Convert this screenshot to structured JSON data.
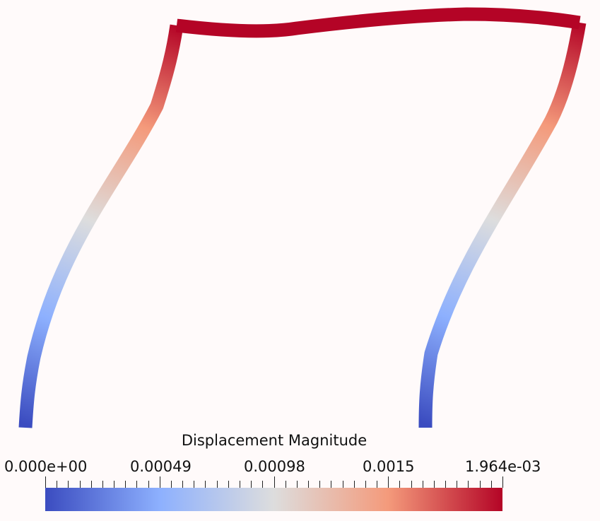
{
  "colorbar": {
    "title": "Displacement Magnitude",
    "labels": [
      "0.000e+00",
      "0.00049",
      "0.00098",
      "0.0015",
      "1.964e-03"
    ],
    "range": [
      0,
      0.001964
    ],
    "colormap": "Cool to Warm",
    "stops": [
      "#3b4cc0",
      "#8db0fe",
      "#dddddd",
      "#f49a7b",
      "#b40426"
    ]
  },
  "background": "#fffafa"
}
